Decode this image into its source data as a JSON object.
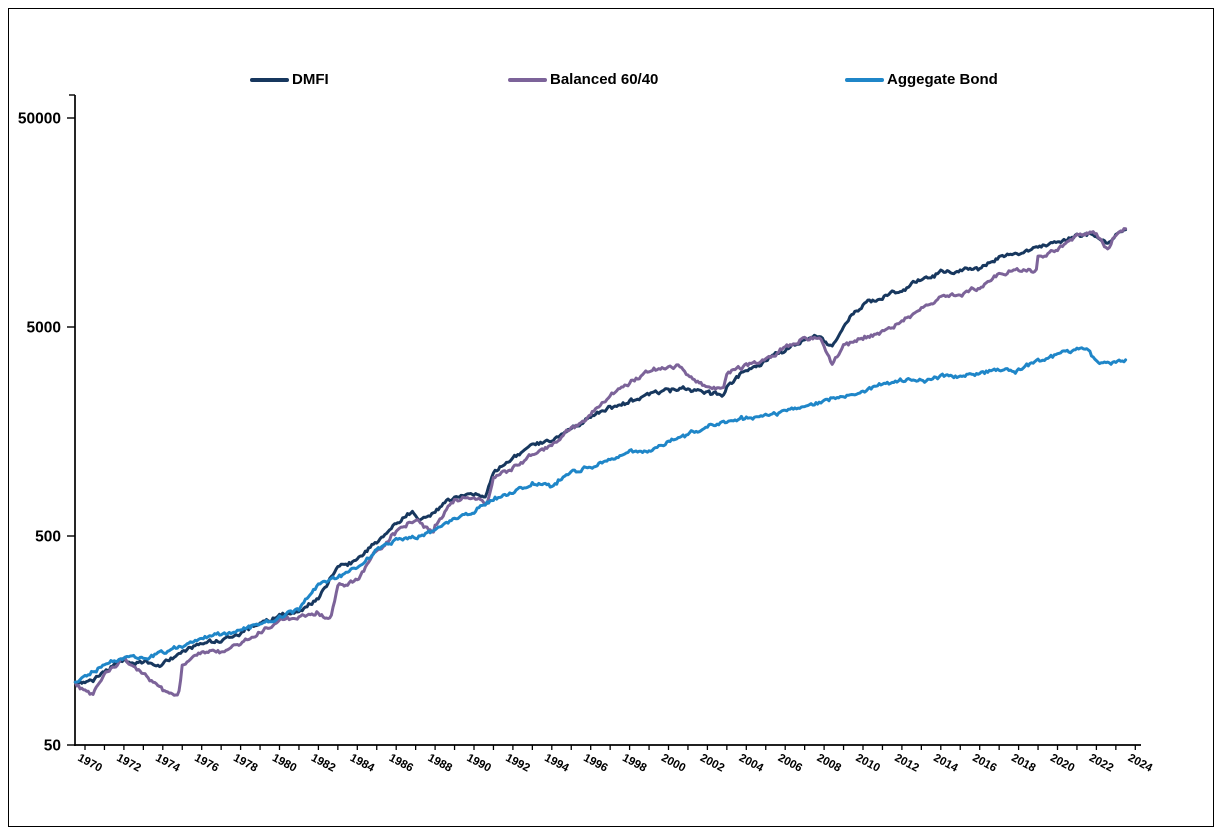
{
  "page": {
    "background": "#ffffff",
    "border_color": "#000000"
  },
  "legend": {
    "items": [
      {
        "label": "DMFI",
        "color": "#17375E"
      },
      {
        "label": "Balanced 60/40",
        "color": "#7C6399"
      },
      {
        "label": "Aggegate Bond",
        "color": "#1F86C8"
      }
    ]
  },
  "chart_data": {
    "type": "line",
    "title": "",
    "xlabel": "",
    "ylabel": "",
    "grid": false,
    "legend_position": "top",
    "y_axis": {
      "scale": "log",
      "ticks": [
        50,
        500,
        5000,
        50000
      ],
      "tick_labels": [
        "50",
        "500",
        "5000",
        "50000"
      ],
      "min": 50,
      "max": 70000
    },
    "x_axis": {
      "start": 1969.5,
      "end": 2024.3,
      "minor_tick_step": 1,
      "major_tick_step": 2,
      "tick_labels": [
        "1970",
        "1972",
        "1974",
        "1976",
        "1978",
        "1980",
        "1982",
        "1984",
        "1986",
        "1988",
        "1990",
        "1992",
        "1994",
        "1996",
        "1998",
        "2000",
        "2002",
        "2004",
        "2006",
        "2008",
        "2010",
        "2012",
        "2014",
        "2016",
        "2018",
        "2020",
        "2022",
        "2024"
      ]
    },
    "series": [
      {
        "name": "DMFI",
        "color": "#17375E",
        "points": [
          [
            1969.5,
            100
          ],
          [
            1970,
            99
          ],
          [
            1970.5,
            104
          ],
          [
            1971,
            113
          ],
          [
            1972,
            127
          ],
          [
            1973,
            125
          ],
          [
            1974,
            122
          ],
          [
            1975,
            139
          ],
          [
            1976,
            153
          ],
          [
            1977,
            158
          ],
          [
            1978,
            172
          ],
          [
            1979,
            193
          ],
          [
            1980,
            208
          ],
          [
            1981,
            218
          ],
          [
            1982,
            250
          ],
          [
            1982.8,
            330
          ],
          [
            1983,
            362
          ],
          [
            1984,
            380
          ],
          [
            1985,
            468
          ],
          [
            1986,
            575
          ],
          [
            1986.8,
            655
          ],
          [
            1987.2,
            600
          ],
          [
            1988,
            655
          ],
          [
            1989,
            765
          ],
          [
            1990,
            800
          ],
          [
            1990.6,
            750
          ],
          [
            1991,
            1010
          ],
          [
            1992,
            1180
          ],
          [
            1993,
            1340
          ],
          [
            1994,
            1420
          ],
          [
            1995,
            1630
          ],
          [
            1996,
            1830
          ],
          [
            1997,
            2060
          ],
          [
            1998,
            2200
          ],
          [
            1999,
            2360
          ],
          [
            2000,
            2480
          ],
          [
            2001,
            2530
          ],
          [
            2002,
            2430
          ],
          [
            2002.8,
            2360
          ],
          [
            2003,
            2600
          ],
          [
            2004,
            3150
          ],
          [
            2005,
            3460
          ],
          [
            2006,
            3900
          ],
          [
            2007,
            4420
          ],
          [
            2007.8,
            4480
          ],
          [
            2008.4,
            3950
          ],
          [
            2009,
            5100
          ],
          [
            2010,
            6400
          ],
          [
            2011,
            6950
          ],
          [
            2012,
            7500
          ],
          [
            2013,
            8500
          ],
          [
            2014,
            9100
          ],
          [
            2015,
            9250
          ],
          [
            2016,
            9600
          ],
          [
            2017,
            10800
          ],
          [
            2018,
            11200
          ],
          [
            2019,
            12200
          ],
          [
            2020,
            12700
          ],
          [
            2021,
            13700
          ],
          [
            2021.8,
            13900
          ],
          [
            2022.6,
            12600
          ],
          [
            2023,
            14000
          ],
          [
            2023.5,
            14600
          ]
        ]
      },
      {
        "name": "Balanced 60/40",
        "color": "#7C6399",
        "points": [
          [
            1969.5,
            100
          ],
          [
            1970,
            90
          ],
          [
            1970.4,
            87
          ],
          [
            1971,
            110
          ],
          [
            1972,
            129
          ],
          [
            1973,
            111
          ],
          [
            1974,
            91
          ],
          [
            1974.8,
            86
          ],
          [
            1975,
            119
          ],
          [
            1976,
            139
          ],
          [
            1977,
            141
          ],
          [
            1978,
            153
          ],
          [
            1979,
            173
          ],
          [
            1980,
            196
          ],
          [
            1981,
            206
          ],
          [
            1982,
            216
          ],
          [
            1982.6,
            198
          ],
          [
            1983,
            292
          ],
          [
            1984,
            308
          ],
          [
            1985,
            422
          ],
          [
            1986,
            525
          ],
          [
            1987,
            600
          ],
          [
            1987.9,
            515
          ],
          [
            1988,
            560
          ],
          [
            1989,
            745
          ],
          [
            1990,
            765
          ],
          [
            1990.7,
            705
          ],
          [
            1991,
            965
          ],
          [
            1992,
            1060
          ],
          [
            1993,
            1230
          ],
          [
            1994,
            1350
          ],
          [
            1995,
            1650
          ],
          [
            1996,
            1910
          ],
          [
            1997,
            2360
          ],
          [
            1998,
            2710
          ],
          [
            1999,
            3100
          ],
          [
            2000,
            3230
          ],
          [
            2000.6,
            3270
          ],
          [
            2001,
            2910
          ],
          [
            2002,
            2600
          ],
          [
            2002.8,
            2530
          ],
          [
            2003,
            3000
          ],
          [
            2004,
            3260
          ],
          [
            2005,
            3510
          ],
          [
            2006,
            3960
          ],
          [
            2007,
            4430
          ],
          [
            2007.8,
            4490
          ],
          [
            2008.4,
            3300
          ],
          [
            2009,
            4050
          ],
          [
            2010,
            4450
          ],
          [
            2011,
            4700
          ],
          [
            2012,
            5300
          ],
          [
            2013,
            6100
          ],
          [
            2014,
            6950
          ],
          [
            2015,
            7100
          ],
          [
            2016,
            7750
          ],
          [
            2017,
            8950
          ],
          [
            2018,
            9400
          ],
          [
            2018.9,
            9050
          ],
          [
            2019,
            10700
          ],
          [
            2020,
            11600
          ],
          [
            2021,
            13900
          ],
          [
            2021.8,
            14300
          ],
          [
            2022.6,
            11800
          ],
          [
            2023,
            14000
          ],
          [
            2023.5,
            14750
          ]
        ]
      },
      {
        "name": "Aggegate Bond",
        "color": "#1F86C8",
        "points": [
          [
            1969.5,
            100
          ],
          [
            1970,
            107
          ],
          [
            1971,
            121
          ],
          [
            1972,
            129
          ],
          [
            1973,
            133
          ],
          [
            1974,
            138
          ],
          [
            1975,
            149
          ],
          [
            1976,
            163
          ],
          [
            1977,
            169
          ],
          [
            1978,
            176
          ],
          [
            1979,
            191
          ],
          [
            1980,
            203
          ],
          [
            1981,
            224
          ],
          [
            1982,
            292
          ],
          [
            1983,
            317
          ],
          [
            1984,
            352
          ],
          [
            1985,
            422
          ],
          [
            1986,
            482
          ],
          [
            1987,
            492
          ],
          [
            1988,
            532
          ],
          [
            1989,
            602
          ],
          [
            1990,
            652
          ],
          [
            1991,
            757
          ],
          [
            1992,
            812
          ],
          [
            1993,
            892
          ],
          [
            1994,
            866
          ],
          [
            1995,
            1020
          ],
          [
            1996,
            1062
          ],
          [
            1997,
            1160
          ],
          [
            1998,
            1272
          ],
          [
            1999,
            1262
          ],
          [
            2000,
            1405
          ],
          [
            2001,
            1525
          ],
          [
            2002,
            1680
          ],
          [
            2003,
            1752
          ],
          [
            2004,
            1832
          ],
          [
            2005,
            1876
          ],
          [
            2006,
            1956
          ],
          [
            2007,
            2092
          ],
          [
            2008,
            2205
          ],
          [
            2009,
            2335
          ],
          [
            2010,
            2485
          ],
          [
            2011,
            2685
          ],
          [
            2012,
            2790
          ],
          [
            2013,
            2745
          ],
          [
            2014,
            2905
          ],
          [
            2015,
            2925
          ],
          [
            2016,
            3005
          ],
          [
            2017,
            3115
          ],
          [
            2018,
            3115
          ],
          [
            2019,
            3425
          ],
          [
            2020,
            3725
          ],
          [
            2021,
            3855
          ],
          [
            2021.5,
            3890
          ],
          [
            2022,
            3430
          ],
          [
            2022.7,
            3300
          ],
          [
            2023,
            3400
          ],
          [
            2023.5,
            3480
          ]
        ]
      }
    ]
  }
}
